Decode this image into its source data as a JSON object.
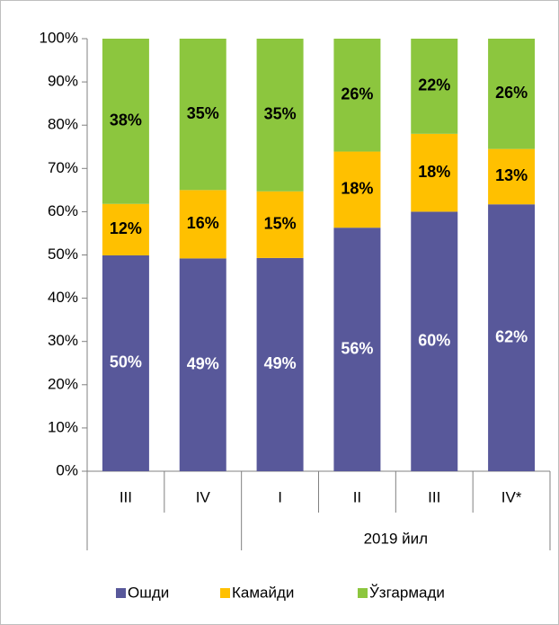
{
  "chart_data": {
    "type": "stacked_bar",
    "categories": [
      "III",
      "IV",
      "I",
      "II",
      "III",
      "IV*"
    ],
    "category_groups": [
      {
        "label": null,
        "count": 2
      },
      {
        "label": "2019 йил",
        "count": 4
      }
    ],
    "series": [
      {
        "name": "Ошди",
        "color": "#58589a",
        "label_color": "#ffffff",
        "values": [
          49.9,
          49.2,
          49.3,
          56.3,
          60,
          61.7
        ],
        "value_labels": [
          "50%",
          "49%",
          "49%",
          "56%",
          "60%",
          "62%"
        ]
      },
      {
        "name": "Камайди",
        "color": "#ffc000",
        "label_color": "#000000",
        "values": [
          11.9,
          15.8,
          15.4,
          17.6,
          18,
          12.8
        ],
        "value_labels": [
          "12%",
          "16%",
          "15%",
          "18%",
          "18%",
          "13%"
        ]
      },
      {
        "name": "Ўзгармади",
        "color": "#8cc63e",
        "label_color": "#000000",
        "values": [
          38.2,
          35,
          35.3,
          26.1,
          22,
          25.5
        ],
        "value_labels": [
          "38%",
          "35%",
          "35%",
          "26%",
          "22%",
          "26%"
        ]
      }
    ],
    "ylim": [
      0,
      100
    ],
    "yticks": [
      {
        "value": 0,
        "label": "0%"
      },
      {
        "value": 10,
        "label": "10%"
      },
      {
        "value": 20,
        "label": "20%"
      },
      {
        "value": 30,
        "label": "30%"
      },
      {
        "value": 40,
        "label": "40%"
      },
      {
        "value": 50,
        "label": "50%"
      },
      {
        "value": 60,
        "label": "60%"
      },
      {
        "value": 70,
        "label": "70%"
      },
      {
        "value": 80,
        "label": "80%"
      },
      {
        "value": 90,
        "label": "90%"
      },
      {
        "value": 100,
        "label": "100%"
      }
    ],
    "grid": false,
    "legend": "bottom"
  }
}
